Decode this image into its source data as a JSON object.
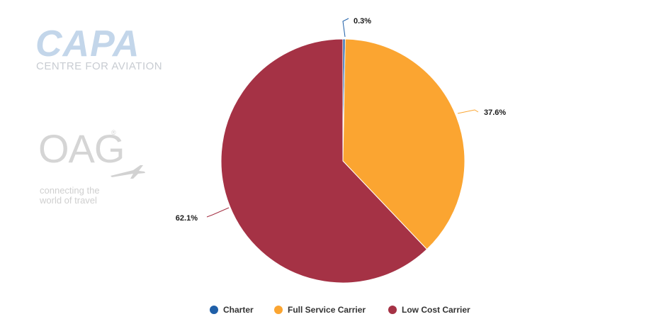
{
  "logos": {
    "capa": {
      "name": "CAPA",
      "subtitle": "CENTRE FOR AVIATION"
    },
    "oag": {
      "name": "OAG",
      "tagline_line1": "connecting the",
      "tagline_line2": "world of travel"
    }
  },
  "chart_data": {
    "type": "pie",
    "title": "",
    "slices": [
      {
        "name": "Charter",
        "value": 0.3,
        "label": "0.3%",
        "color": "#1f5fa8"
      },
      {
        "name": "Full Service Carrier",
        "value": 37.6,
        "label": "37.6%",
        "color": "#fba531"
      },
      {
        "name": "Low Cost Carrier",
        "value": 62.1,
        "label": "62.1%",
        "color": "#a53245"
      }
    ],
    "start_angle_deg": 0,
    "direction": "clockwise",
    "legend_placement": "bottom"
  }
}
